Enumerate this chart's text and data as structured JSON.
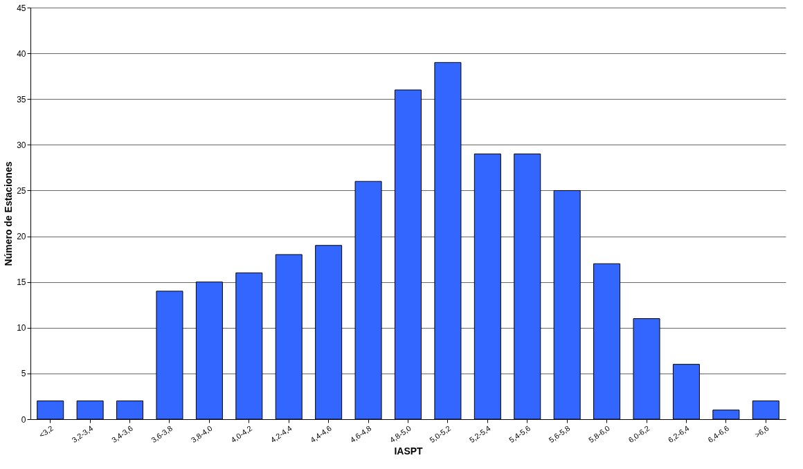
{
  "chart_data": {
    "type": "bar",
    "xlabel": "IASPT",
    "ylabel": "Número de Estaciones",
    "categories": [
      "<3,2",
      "3,2-3,4",
      "3,4-3,6",
      "3,6-3,8",
      "3,8-4,0",
      "4,0-4,2",
      "4,2-4,4",
      "4,4-4,6",
      "4,6-4,8",
      "4,8-5,0",
      "5,0-5,2",
      "5,2-5,4",
      "5,4-5,6",
      "5,6-5,8",
      "5,8-6,0",
      "6,0-6,2",
      "6,2-6,4",
      "6,4-6,6",
      ">6,6"
    ],
    "values": [
      2,
      2,
      2,
      14,
      15,
      16,
      18,
      19,
      26,
      36,
      39,
      29,
      29,
      25,
      17,
      11,
      6,
      1,
      2
    ],
    "color": "#3366ff",
    "ylim": [
      0,
      45
    ],
    "yticks": [
      0,
      5,
      10,
      15,
      20,
      25,
      30,
      35,
      40,
      45
    ],
    "grid": "y"
  }
}
